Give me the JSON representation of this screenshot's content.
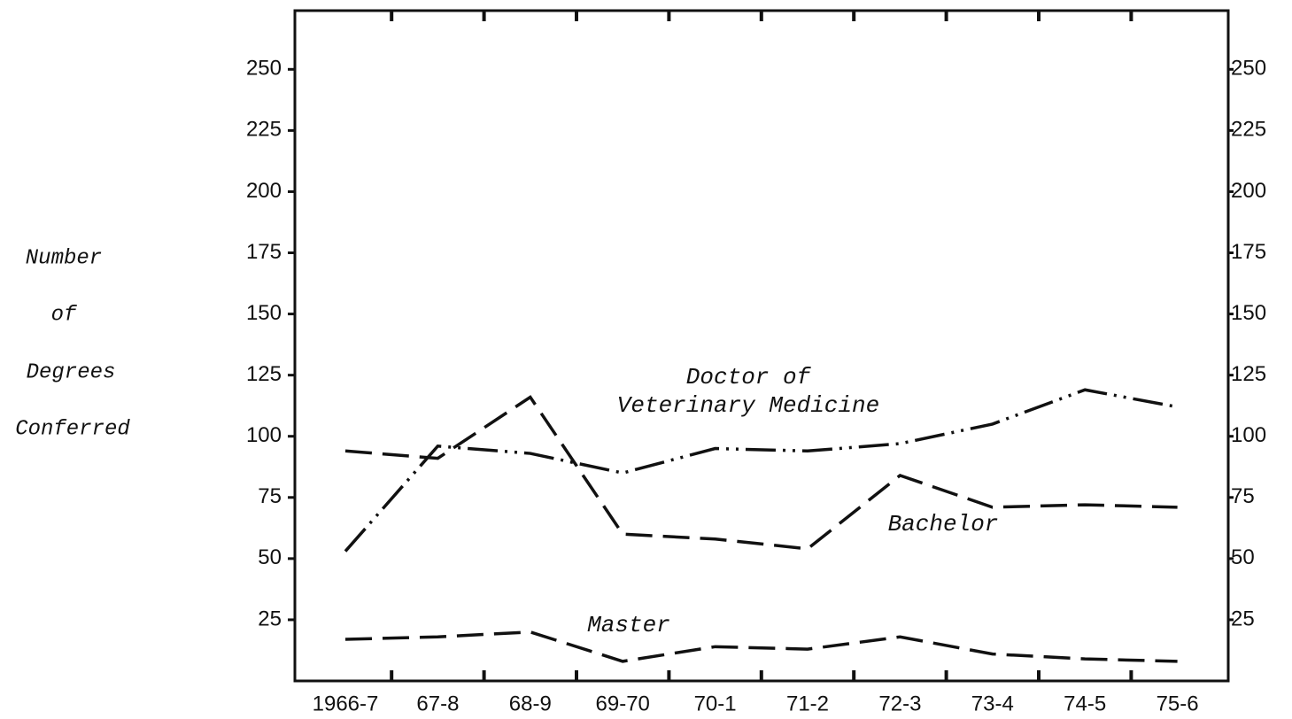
{
  "chart_data": {
    "type": "line",
    "y_label": [
      "Number",
      "of",
      "Degrees",
      "Conferred"
    ],
    "categories": [
      "1966-7",
      "67-8",
      "68-9",
      "69-70",
      "70-1",
      "71-2",
      "72-3",
      "73-4",
      "74-5",
      "75-6"
    ],
    "series": [
      {
        "name": "Doctor of Veterinary Medicine",
        "color": "#111111",
        "dash": "dash-dot-dot",
        "values": [
          53,
          96,
          93,
          85,
          95,
          94,
          97,
          105,
          119,
          112
        ]
      },
      {
        "name": "Bachelor",
        "color": "#111111",
        "dash": "dash",
        "values": [
          94,
          91,
          116,
          60,
          58,
          54,
          84,
          71,
          72,
          71
        ]
      },
      {
        "name": "Master",
        "color": "#111111",
        "dash": "dash",
        "values": [
          17,
          18,
          20,
          8,
          14,
          13,
          18,
          11,
          9,
          8
        ]
      }
    ],
    "ylim": [
      0,
      274
    ],
    "yticks": [
      25,
      50,
      75,
      100,
      125,
      150,
      175,
      200,
      225,
      250
    ],
    "y2lim": [
      0,
      274
    ],
    "y2ticks": [
      25,
      50,
      75,
      100,
      125,
      150,
      175,
      200,
      225,
      250
    ],
    "grid": false
  }
}
